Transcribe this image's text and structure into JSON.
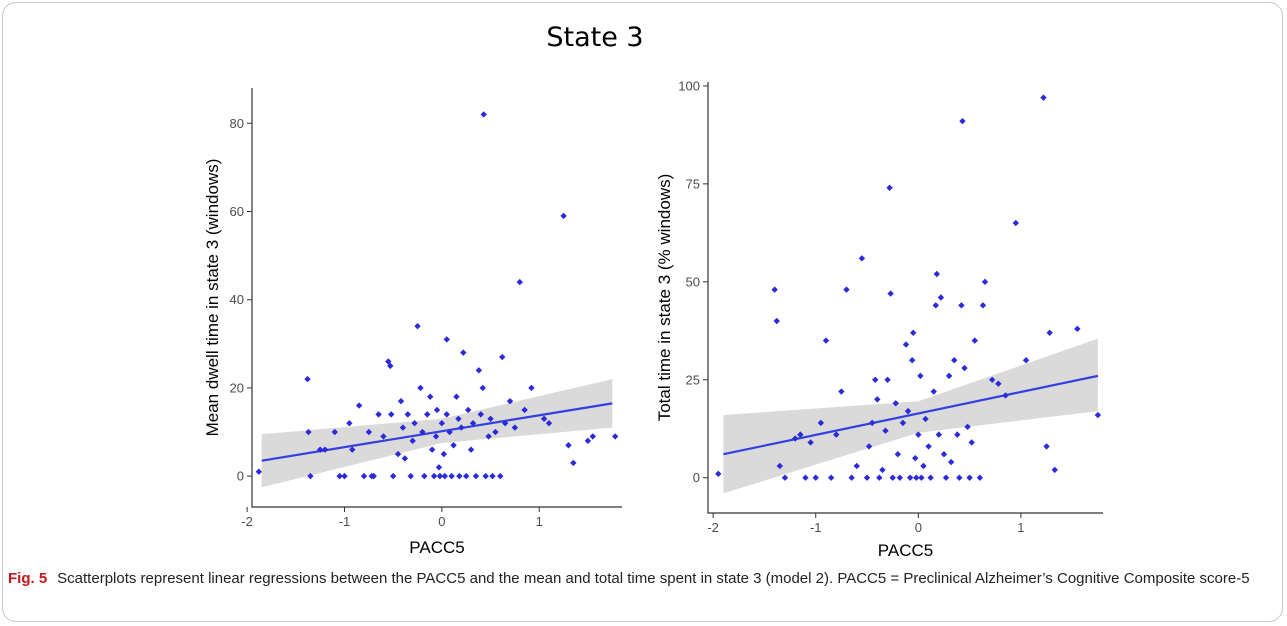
{
  "figure": {
    "title": "State 3",
    "caption_label": "Fig. 5",
    "caption_text": "Scatterplots represent linear regressions between the PACC5 and the mean and total time spent in state 3 (model 2). PACC5 = Preclinical Alzheimer’s Cognitive Composite score-5"
  },
  "colors": {
    "points": "#2b2bd9",
    "fit_line": "#3140e0",
    "ci_band": "#d3d3d3",
    "axis": "#333333"
  },
  "chart_data": [
    {
      "type": "scatter",
      "title": "",
      "xlabel": "PACC5",
      "ylabel": "Mean dwell time in state 3 (windows)",
      "xlim": [
        -1.95,
        1.85
      ],
      "ylim": [
        -7,
        88
      ],
      "xticks": [
        -2,
        -1,
        0,
        1
      ],
      "yticks": [
        0,
        20,
        40,
        60,
        80
      ],
      "grid": false,
      "regression": {
        "x0": -1.85,
        "y0": 3.5,
        "x1": 1.75,
        "y1": 16.5,
        "ci_lower": [
          [
            -1.85,
            -2.5
          ],
          [
            0.0,
            7.5
          ],
          [
            1.75,
            11.0
          ]
        ],
        "ci_upper": [
          [
            -1.85,
            9.5
          ],
          [
            0.0,
            13.0
          ],
          [
            1.75,
            22.0
          ]
        ]
      },
      "points": [
        [
          -1.88,
          1
        ],
        [
          -1.38,
          22
        ],
        [
          -1.37,
          10
        ],
        [
          -1.35,
          0
        ],
        [
          -1.25,
          6
        ],
        [
          -1.2,
          6
        ],
        [
          -1.1,
          10
        ],
        [
          -1.05,
          0
        ],
        [
          -1.0,
          0
        ],
        [
          -0.95,
          12
        ],
        [
          -0.92,
          6
        ],
        [
          -0.85,
          16
        ],
        [
          -0.8,
          0
        ],
        [
          -0.75,
          10
        ],
        [
          -0.72,
          0
        ],
        [
          -0.7,
          0
        ],
        [
          -0.65,
          14
        ],
        [
          -0.6,
          9
        ],
        [
          -0.55,
          26
        ],
        [
          -0.53,
          25
        ],
        [
          -0.52,
          14
        ],
        [
          -0.5,
          0
        ],
        [
          -0.45,
          5
        ],
        [
          -0.42,
          17
        ],
        [
          -0.4,
          11
        ],
        [
          -0.38,
          4
        ],
        [
          -0.35,
          14
        ],
        [
          -0.32,
          0
        ],
        [
          -0.3,
          8
        ],
        [
          -0.28,
          12
        ],
        [
          -0.25,
          34
        ],
        [
          -0.22,
          20
        ],
        [
          -0.2,
          10
        ],
        [
          -0.18,
          0
        ],
        [
          -0.15,
          14
        ],
        [
          -0.12,
          18
        ],
        [
          -0.1,
          6
        ],
        [
          -0.08,
          0
        ],
        [
          -0.06,
          9
        ],
        [
          -0.05,
          15
        ],
        [
          -0.03,
          2
        ],
        [
          -0.02,
          0
        ],
        [
          0.0,
          12
        ],
        [
          0.02,
          5
        ],
        [
          0.03,
          0
        ],
        [
          0.05,
          14
        ],
        [
          0.05,
          31
        ],
        [
          0.08,
          10
        ],
        [
          0.1,
          0
        ],
        [
          0.12,
          7
        ],
        [
          0.15,
          18
        ],
        [
          0.17,
          13
        ],
        [
          0.18,
          0
        ],
        [
          0.2,
          11
        ],
        [
          0.22,
          28
        ],
        [
          0.25,
          0
        ],
        [
          0.27,
          15
        ],
        [
          0.3,
          6
        ],
        [
          0.32,
          12
        ],
        [
          0.35,
          0
        ],
        [
          0.38,
          24
        ],
        [
          0.4,
          14
        ],
        [
          0.42,
          20
        ],
        [
          0.43,
          82
        ],
        [
          0.45,
          0
        ],
        [
          0.48,
          9
        ],
        [
          0.5,
          13
        ],
        [
          0.52,
          0
        ],
        [
          0.55,
          10
        ],
        [
          0.6,
          0
        ],
        [
          0.62,
          27
        ],
        [
          0.65,
          12
        ],
        [
          0.7,
          17
        ],
        [
          0.75,
          11
        ],
        [
          0.8,
          44
        ],
        [
          0.85,
          15
        ],
        [
          0.92,
          20
        ],
        [
          1.05,
          13
        ],
        [
          1.1,
          12
        ],
        [
          1.25,
          59
        ],
        [
          1.3,
          7
        ],
        [
          1.35,
          3
        ],
        [
          1.5,
          8
        ],
        [
          1.55,
          9
        ],
        [
          1.78,
          9
        ]
      ]
    },
    {
      "type": "scatter",
      "title": "",
      "xlabel": "PACC5",
      "ylabel": "Total  time in state 3 (% windows)",
      "xlim": [
        -2.05,
        1.8
      ],
      "ylim": [
        -9,
        101
      ],
      "xticks": [
        -2,
        -1,
        0,
        1
      ],
      "yticks": [
        0,
        25,
        50,
        75,
        100
      ],
      "grid": false,
      "regression": {
        "x0": -1.9,
        "y0": 6,
        "x1": 1.75,
        "y1": 26,
        "ci_lower": [
          [
            -1.9,
            -4
          ],
          [
            0.0,
            11.5
          ],
          [
            1.75,
            17.0
          ]
        ],
        "ci_upper": [
          [
            -1.9,
            16
          ],
          [
            0.0,
            19.5
          ],
          [
            1.75,
            35.5
          ]
        ]
      },
      "points": [
        [
          -1.95,
          1
        ],
        [
          -1.4,
          48
        ],
        [
          -1.38,
          40
        ],
        [
          -1.35,
          3
        ],
        [
          -1.3,
          0
        ],
        [
          -1.2,
          10
        ],
        [
          -1.15,
          11
        ],
        [
          -1.1,
          0
        ],
        [
          -1.05,
          9
        ],
        [
          -1.0,
          0
        ],
        [
          -0.95,
          14
        ],
        [
          -0.9,
          35
        ],
        [
          -0.85,
          0
        ],
        [
          -0.8,
          11
        ],
        [
          -0.75,
          22
        ],
        [
          -0.7,
          48
        ],
        [
          -0.65,
          0
        ],
        [
          -0.6,
          3
        ],
        [
          -0.55,
          56
        ],
        [
          -0.5,
          0
        ],
        [
          -0.48,
          8
        ],
        [
          -0.45,
          14
        ],
        [
          -0.42,
          25
        ],
        [
          -0.4,
          20
        ],
        [
          -0.38,
          0
        ],
        [
          -0.35,
          2
        ],
        [
          -0.32,
          12
        ],
        [
          -0.3,
          25
        ],
        [
          -0.28,
          74
        ],
        [
          -0.27,
          47
        ],
        [
          -0.25,
          0
        ],
        [
          -0.22,
          19
        ],
        [
          -0.2,
          6
        ],
        [
          -0.18,
          0
        ],
        [
          -0.15,
          14
        ],
        [
          -0.12,
          34
        ],
        [
          -0.1,
          17
        ],
        [
          -0.08,
          0
        ],
        [
          -0.06,
          30
        ],
        [
          -0.05,
          37
        ],
        [
          -0.03,
          5
        ],
        [
          -0.02,
          0
        ],
        [
          0.0,
          11
        ],
        [
          0.02,
          26
        ],
        [
          0.03,
          0
        ],
        [
          0.05,
          3
        ],
        [
          0.07,
          15
        ],
        [
          0.1,
          8
        ],
        [
          0.12,
          0
        ],
        [
          0.15,
          22
        ],
        [
          0.17,
          44
        ],
        [
          0.18,
          52
        ],
        [
          0.2,
          11
        ],
        [
          0.22,
          46
        ],
        [
          0.25,
          6
        ],
        [
          0.27,
          0
        ],
        [
          0.3,
          26
        ],
        [
          0.32,
          4
        ],
        [
          0.35,
          30
        ],
        [
          0.38,
          11
        ],
        [
          0.4,
          0
        ],
        [
          0.42,
          44
        ],
        [
          0.43,
          91
        ],
        [
          0.45,
          28
        ],
        [
          0.48,
          13
        ],
        [
          0.5,
          0
        ],
        [
          0.52,
          9
        ],
        [
          0.55,
          35
        ],
        [
          0.6,
          0
        ],
        [
          0.63,
          44
        ],
        [
          0.65,
          50
        ],
        [
          0.72,
          25
        ],
        [
          0.78,
          24
        ],
        [
          0.85,
          21
        ],
        [
          0.95,
          65
        ],
        [
          1.05,
          30
        ],
        [
          1.22,
          97
        ],
        [
          1.25,
          8
        ],
        [
          1.28,
          37
        ],
        [
          1.33,
          2
        ],
        [
          1.55,
          38
        ],
        [
          1.75,
          16
        ]
      ]
    }
  ]
}
